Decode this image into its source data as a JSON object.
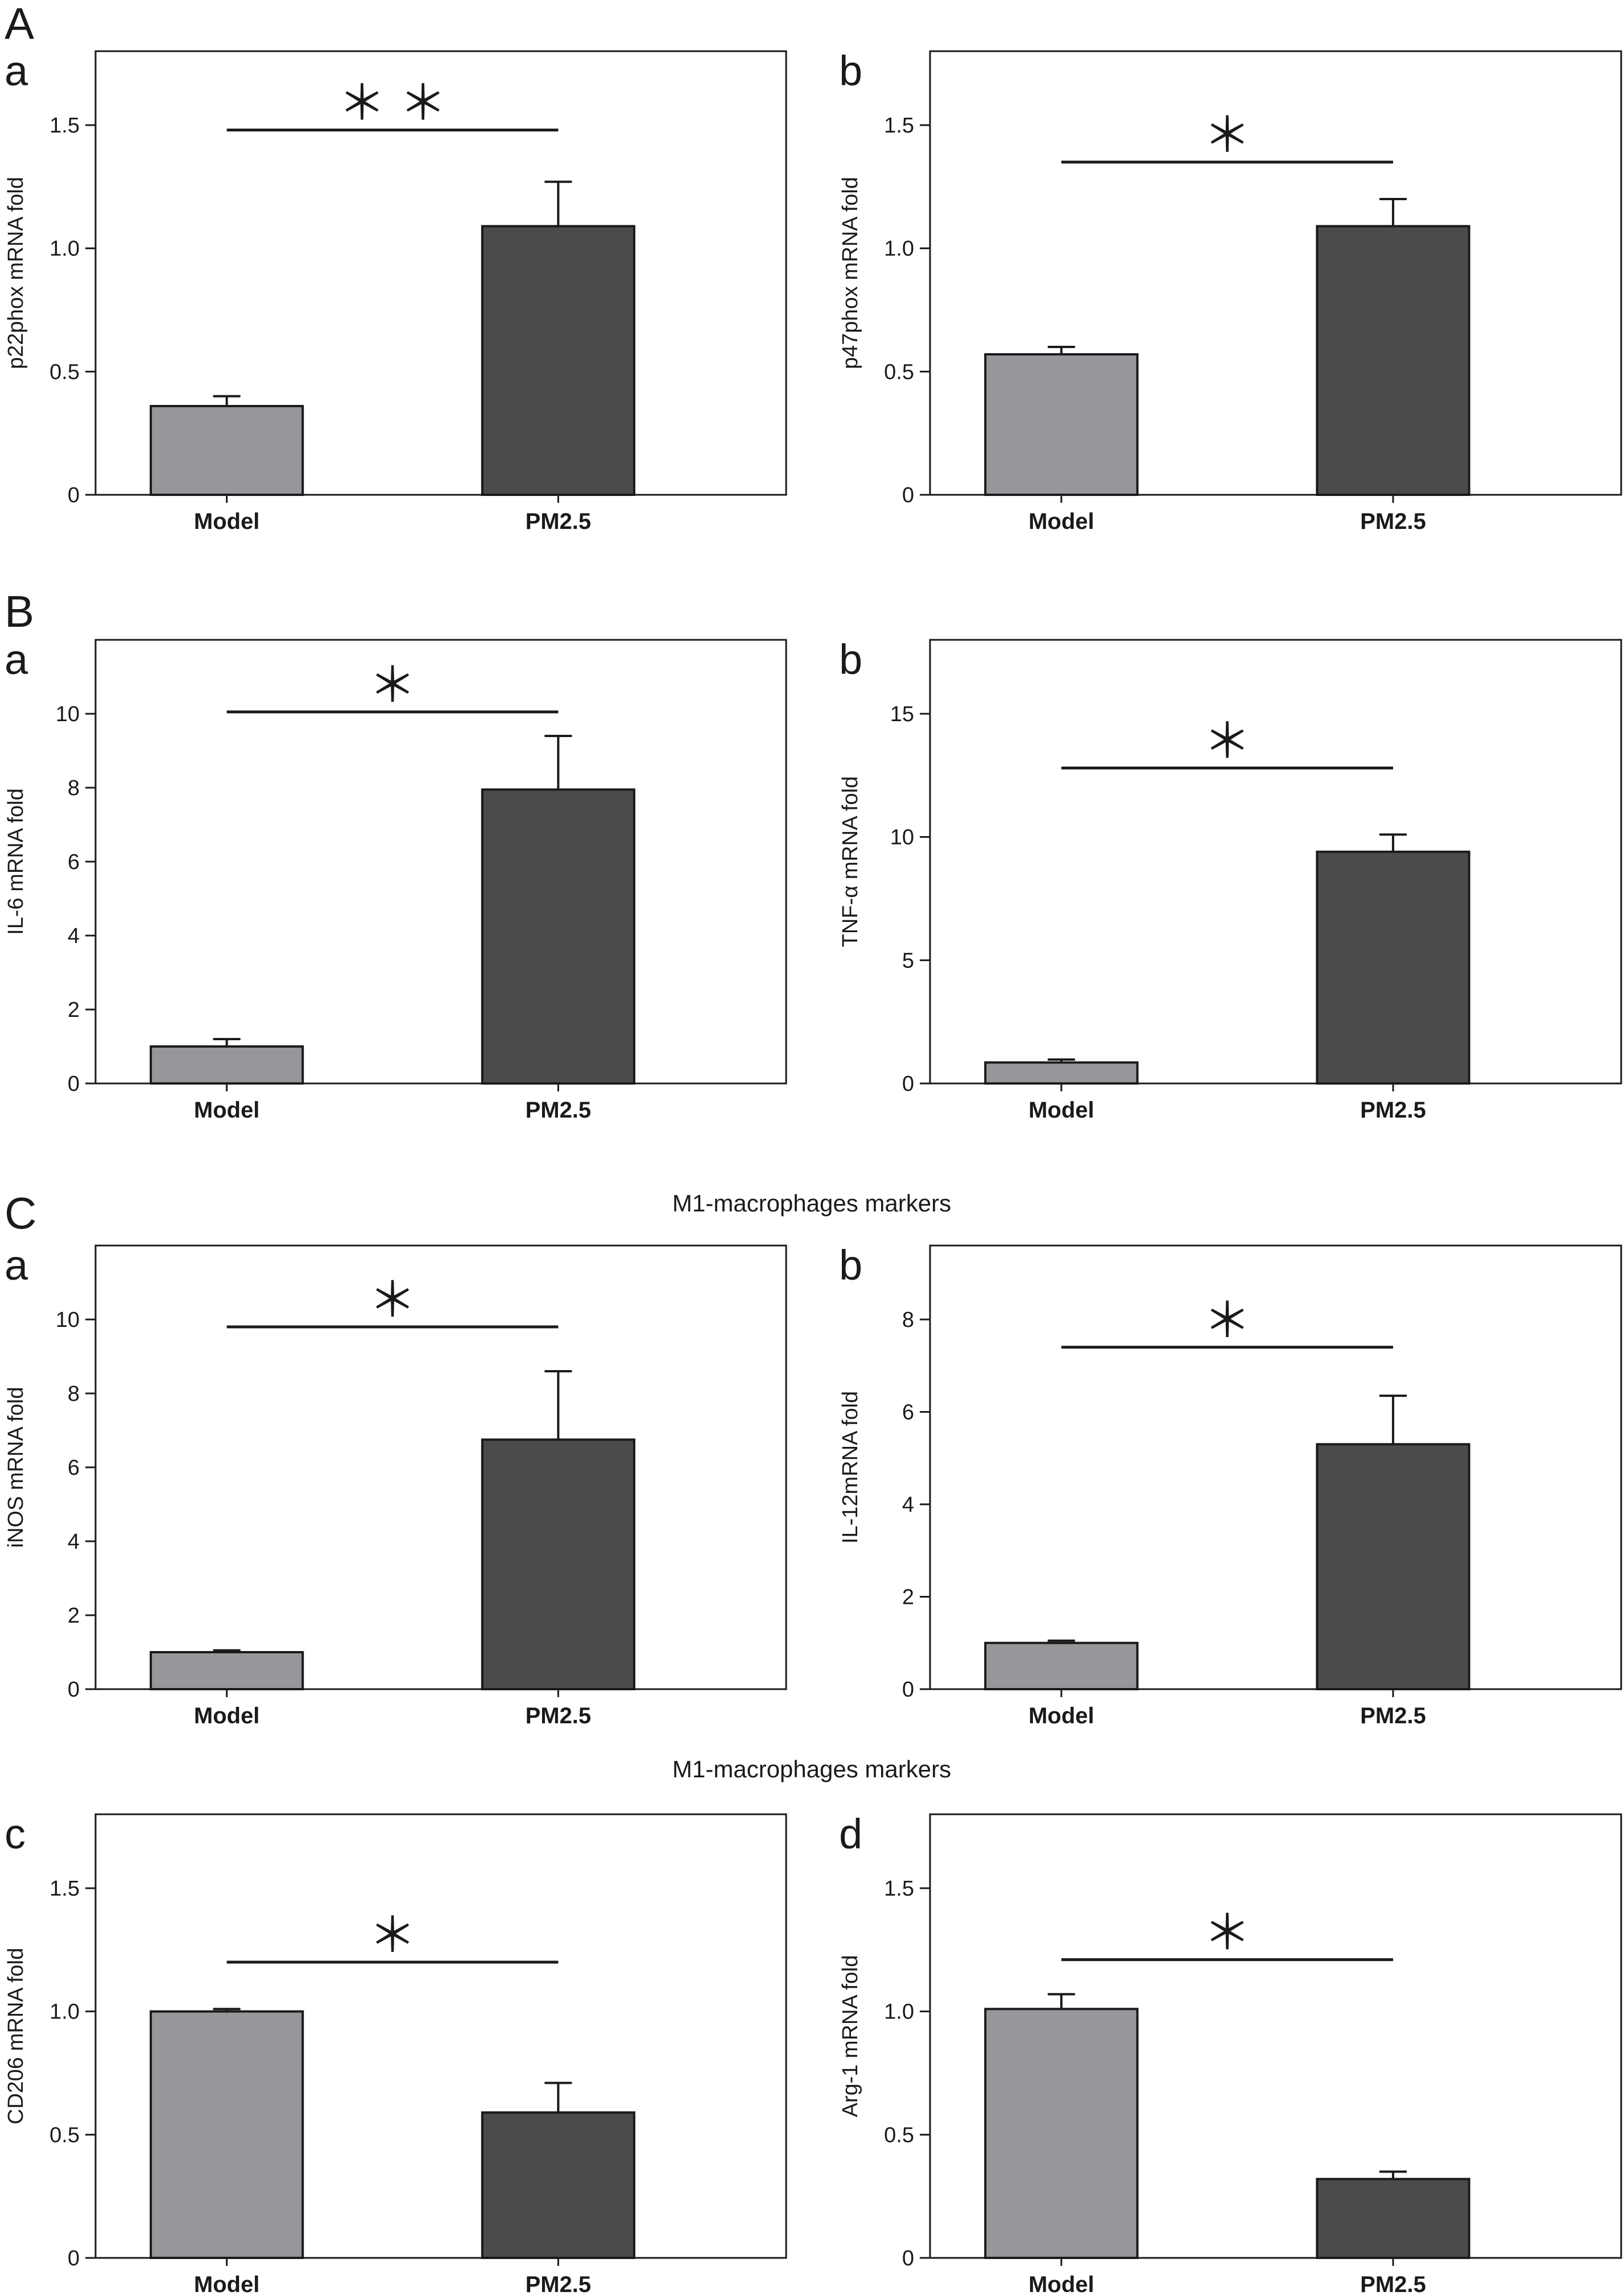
{
  "figure": {
    "section_labels": [
      "A",
      "B",
      "C"
    ],
    "section_titles": [
      "M1-macrophages markers",
      "M1-macrophages markers"
    ]
  },
  "colors": {
    "model_bar": "#96979b",
    "pm_bar": "#4b4b4d",
    "axis": "#1a1a1a"
  },
  "chart_data": [
    {
      "type": "bar",
      "panel": "a",
      "ylabel": "p22phox mRNA fold",
      "categories": [
        "Model",
        "PM2.5"
      ],
      "values": [
        0.36,
        1.09
      ],
      "errors": [
        0.04,
        0.18
      ],
      "ylim": [
        0,
        1.8
      ],
      "yticks": [
        0,
        0.5,
        1.0,
        1.5
      ],
      "tick_labels": [
        "0",
        "0.5",
        "1.0",
        "1.5"
      ],
      "significance": "＊ ＊",
      "sig_line_y": 1.48
    },
    {
      "type": "bar",
      "panel": "b",
      "ylabel": "p47phox mRNA fold",
      "categories": [
        "Model",
        "PM2.5"
      ],
      "values": [
        0.57,
        1.09
      ],
      "errors": [
        0.03,
        0.11
      ],
      "ylim": [
        0,
        1.8
      ],
      "yticks": [
        0,
        0.5,
        1.0,
        1.5
      ],
      "tick_labels": [
        "0",
        "0.5",
        "1.0",
        "1.5"
      ],
      "significance": "＊",
      "sig_line_y": 1.35
    },
    {
      "type": "bar",
      "panel": "a",
      "ylabel": "IL-6 mRNA fold",
      "categories": [
        "Model",
        "PM2.5"
      ],
      "values": [
        1.0,
        7.95
      ],
      "errors": [
        0.2,
        1.45
      ],
      "ylim": [
        0,
        12
      ],
      "yticks": [
        0,
        2,
        4,
        6,
        8,
        10
      ],
      "tick_labels": [
        "0",
        "2",
        "4",
        "6",
        "8",
        "10"
      ],
      "significance": "＊",
      "sig_line_y": 10.05
    },
    {
      "type": "bar",
      "panel": "b",
      "ylabel": "TNF-α mRNA fold",
      "categories": [
        "Model",
        "PM2.5"
      ],
      "values": [
        0.85,
        9.4
      ],
      "errors": [
        0.12,
        0.7
      ],
      "ylim": [
        0,
        18
      ],
      "yticks": [
        0,
        5,
        10,
        15
      ],
      "tick_labels": [
        "0",
        "5",
        "10",
        "15"
      ],
      "significance": "＊",
      "sig_line_y": 12.8
    },
    {
      "type": "bar",
      "panel": "a",
      "ylabel": "iNOS mRNA fold",
      "categories": [
        "Model",
        "PM2.5"
      ],
      "values": [
        1.0,
        6.75
      ],
      "errors": [
        0.05,
        1.85
      ],
      "ylim": [
        0,
        12
      ],
      "yticks": [
        0,
        2,
        4,
        6,
        8,
        10
      ],
      "tick_labels": [
        "0",
        "2",
        "4",
        "6",
        "8",
        "10"
      ],
      "significance": "＊",
      "sig_line_y": 9.8
    },
    {
      "type": "bar",
      "panel": "b",
      "ylabel": "IL-12mRNA fold",
      "categories": [
        "Model",
        "PM2.5"
      ],
      "values": [
        1.0,
        5.3
      ],
      "errors": [
        0.05,
        1.05
      ],
      "ylim": [
        0,
        9.6
      ],
      "yticks": [
        0,
        2,
        4,
        6,
        8
      ],
      "tick_labels": [
        "0",
        "2",
        "4",
        "6",
        "8"
      ],
      "significance": "＊",
      "sig_line_y": 7.4
    },
    {
      "type": "bar",
      "panel": "c",
      "ylabel": "CD206 mRNA fold",
      "categories": [
        "Model",
        "PM2.5"
      ],
      "values": [
        1.0,
        0.59
      ],
      "errors": [
        0.01,
        0.12
      ],
      "ylim": [
        0,
        1.8
      ],
      "yticks": [
        0,
        0.5,
        1.0,
        1.5
      ],
      "tick_labels": [
        "0",
        "0.5",
        "1.0",
        "1.5"
      ],
      "significance": "＊",
      "sig_line_y": 1.2
    },
    {
      "type": "bar",
      "panel": "d",
      "ylabel": "Arg-1 mRNA fold",
      "categories": [
        "Model",
        "PM2.5"
      ],
      "values": [
        1.01,
        0.32
      ],
      "errors": [
        0.06,
        0.03
      ],
      "ylim": [
        0,
        1.8
      ],
      "yticks": [
        0,
        0.5,
        1.0,
        1.5
      ],
      "tick_labels": [
        "0",
        "0.5",
        "1.0",
        "1.5"
      ],
      "significance": "＊",
      "sig_line_y": 1.21
    }
  ]
}
